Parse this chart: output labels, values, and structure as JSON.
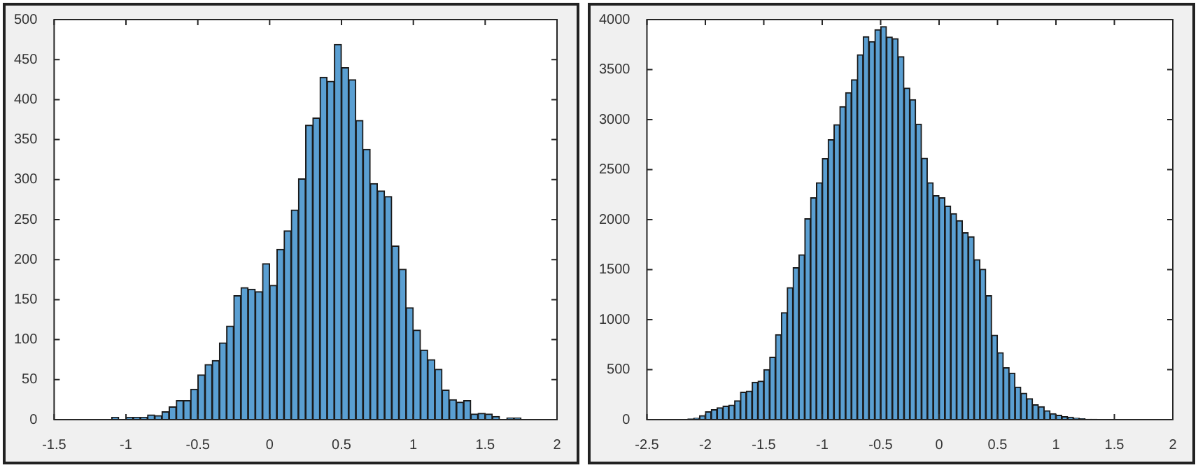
{
  "chart_data": [
    {
      "type": "histogram",
      "color": "#5a9fd2",
      "bins": [
        -1.1,
        -1.05,
        -1,
        -0.95,
        -0.9,
        -0.85,
        -0.8,
        -0.75,
        -0.7,
        -0.65,
        -0.6,
        -0.55,
        -0.5,
        -0.45,
        -0.4,
        -0.35,
        -0.3,
        -0.25,
        -0.2,
        -0.15,
        -0.1,
        -0.05,
        0,
        0.05,
        0.1,
        0.15,
        0.2,
        0.25,
        0.3,
        0.35,
        0.4,
        0.45,
        0.5,
        0.55,
        0.6,
        0.65,
        0.7,
        0.75,
        0.8,
        0.85,
        0.9,
        0.95,
        1,
        1.05,
        1.1,
        1.15,
        1.2,
        1.25,
        1.3,
        1.35,
        1.4,
        1.45,
        1.5,
        1.55,
        1.6,
        1.65,
        1.7,
        1.75
      ],
      "values": [
        3,
        0,
        3,
        3,
        3,
        6,
        5,
        10,
        16,
        24,
        24,
        38,
        56,
        69,
        74,
        96,
        117,
        155,
        165,
        163,
        160,
        195,
        168,
        213,
        236,
        262,
        301,
        368,
        377,
        428,
        423,
        469,
        440,
        425,
        374,
        338,
        295,
        286,
        279,
        217,
        188,
        140,
        112,
        87,
        75,
        63,
        37,
        25,
        22,
        24,
        7,
        8,
        7,
        4,
        0,
        2,
        2
      ],
      "xlim": [
        -1.5,
        2
      ],
      "xticks": [
        -1.5,
        -1,
        -0.5,
        0,
        0.5,
        1,
        1.5,
        2
      ],
      "ylim": [
        0,
        500
      ],
      "yticks": [
        0,
        50,
        100,
        150,
        200,
        250,
        300,
        350,
        400,
        450,
        500
      ]
    },
    {
      "type": "histogram",
      "color": "#5a9fd2",
      "bins": [
        -2.2,
        -2.15,
        -2.1,
        -2.05,
        -2,
        -1.95,
        -1.9,
        -1.85,
        -1.8,
        -1.75,
        -1.7,
        -1.65,
        -1.6,
        -1.55,
        -1.5,
        -1.45,
        -1.4,
        -1.35,
        -1.3,
        -1.25,
        -1.2,
        -1.15,
        -1.1,
        -1.05,
        -1,
        -0.95,
        -0.9,
        -0.85,
        -0.8,
        -0.75,
        -0.7,
        -0.65,
        -0.6,
        -0.55,
        -0.5,
        -0.45,
        -0.4,
        -0.35,
        -0.3,
        -0.25,
        -0.2,
        -0.15,
        -0.1,
        -0.05,
        0,
        0.05,
        0.1,
        0.15,
        0.2,
        0.25,
        0.3,
        0.35,
        0.4,
        0.45,
        0.5,
        0.55,
        0.6,
        0.65,
        0.7,
        0.75,
        0.8,
        0.85,
        0.9,
        0.95,
        1,
        1.05,
        1.1,
        1.15,
        1.2,
        1.25,
        1.3,
        1.35,
        1.4,
        1.45
      ],
      "values": [
        3,
        8,
        15,
        40,
        80,
        100,
        120,
        135,
        145,
        190,
        275,
        285,
        375,
        385,
        500,
        625,
        850,
        1070,
        1320,
        1520,
        1650,
        2010,
        2220,
        2370,
        2610,
        2800,
        2950,
        3130,
        3270,
        3400,
        3650,
        3830,
        3780,
        3900,
        3930,
        3825,
        3810,
        3630,
        3315,
        3200,
        2955,
        2615,
        2370,
        2240,
        2220,
        2135,
        2060,
        1990,
        1870,
        1830,
        1600,
        1505,
        1240,
        845,
        670,
        520,
        465,
        325,
        265,
        210,
        150,
        130,
        90,
        60,
        45,
        30,
        25,
        15,
        10,
        5,
        5,
        3,
        2
      ],
      "xlim": [
        -2.5,
        2
      ],
      "xticks": [
        -2.5,
        -2,
        -1.5,
        -1,
        -0.5,
        0,
        0.5,
        1,
        1.5,
        2
      ],
      "ylim": [
        0,
        4000
      ],
      "yticks": [
        0,
        500,
        1000,
        1500,
        2000,
        2500,
        3000,
        3500,
        4000
      ]
    }
  ]
}
